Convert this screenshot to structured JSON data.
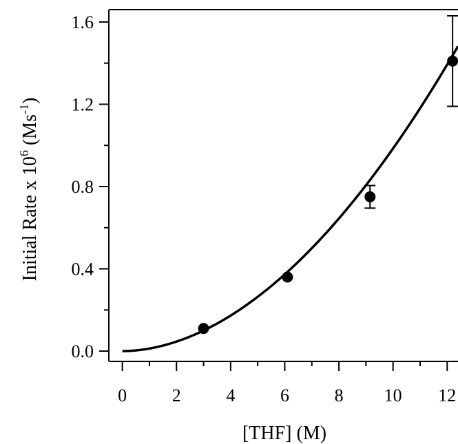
{
  "chart_data": {
    "type": "scatter",
    "xlabel": "[THF] (M)",
    "ylabel_main": "Initial Rate x 10",
    "ylabel_exp": "6",
    "ylabel_unit": " (Ms",
    "ylabel_unit_exp": "-1",
    "ylabel_close": ")",
    "xlim": [
      -0.5,
      12.4
    ],
    "ylim": [
      -0.05,
      1.66
    ],
    "x_ticks": [
      0,
      2,
      4,
      6,
      8,
      10,
      12
    ],
    "y_ticks": [
      0.0,
      0.4,
      0.8,
      1.2,
      1.6
    ],
    "x_tick_labels": [
      "0",
      "2",
      "4",
      "6",
      "8",
      "10",
      "12"
    ],
    "y_tick_labels": [
      "0.0",
      "0.4",
      "0.8",
      "1.2",
      "1.6"
    ],
    "points": [
      {
        "x": 3.0,
        "y": 0.11,
        "err": 0
      },
      {
        "x": 6.1,
        "y": 0.36,
        "err": 0
      },
      {
        "x": 9.15,
        "y": 0.75,
        "err": 0.055
      },
      {
        "x": 12.2,
        "y": 1.41,
        "err": 0.22
      }
    ],
    "fit": {
      "form": "power",
      "a": 0.0124,
      "b": 1.9,
      "x_range": [
        0,
        12.4
      ]
    },
    "grid": false
  }
}
